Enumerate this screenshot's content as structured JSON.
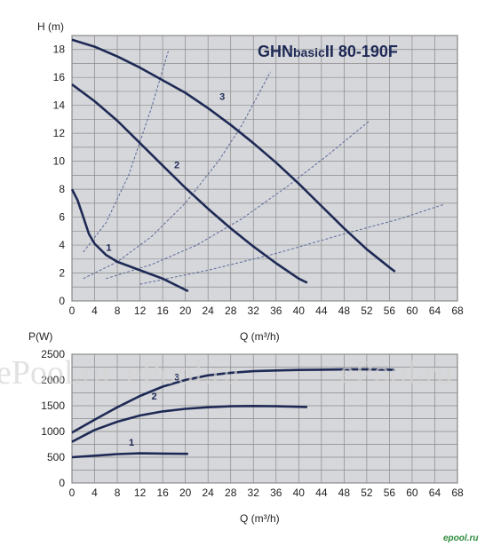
{
  "chart_data": [
    {
      "type": "line",
      "title": "GHNbasicII 80-190F",
      "title_parts": {
        "main": "GHN",
        "mid": "basic",
        "suffix": "II  80-190F"
      },
      "ylabel": "H (m)",
      "xlabel": "Q (m³/h)",
      "xlim": [
        0,
        68
      ],
      "ylim": [
        0,
        19
      ],
      "x_ticks": [
        "0",
        "4",
        "8",
        "12",
        "16",
        "20",
        "24",
        "28",
        "32",
        "36",
        "40",
        "44",
        "48",
        "52",
        "56",
        "60",
        "64",
        "68"
      ],
      "y_ticks": [
        "0",
        "2",
        "4",
        "6",
        "8",
        "10",
        "12",
        "14",
        "16",
        "18"
      ],
      "grid": true,
      "series": [
        {
          "name": "1",
          "x": [
            0,
            1,
            2,
            3,
            4,
            6,
            8,
            12,
            16,
            20.5
          ],
          "y": [
            8,
            7.2,
            6,
            4.8,
            4.1,
            3.3,
            2.8,
            2.2,
            1.6,
            0.7
          ]
        },
        {
          "name": "2",
          "x": [
            0,
            4,
            8,
            12,
            16,
            20,
            24,
            28,
            32,
            36,
            40,
            41.5
          ],
          "y": [
            15.5,
            14.3,
            12.9,
            11.3,
            9.7,
            8.1,
            6.6,
            5.2,
            3.9,
            2.7,
            1.6,
            1.3
          ]
        },
        {
          "name": "3",
          "x": [
            0,
            4,
            8,
            12,
            16,
            20,
            24,
            28,
            32,
            36,
            40,
            44,
            48,
            52,
            56,
            57
          ],
          "y": [
            18.7,
            18.2,
            17.5,
            16.7,
            15.8,
            14.9,
            13.8,
            12.6,
            11.3,
            9.9,
            8.4,
            6.8,
            5.2,
            3.7,
            2.4,
            2.1
          ]
        }
      ],
      "system_curves": [
        {
          "x": [
            2,
            6,
            10,
            14,
            17
          ],
          "y": [
            3.5,
            5.6,
            9.0,
            13.8,
            17.9
          ]
        },
        {
          "x": [
            2,
            8,
            14,
            20,
            26,
            30,
            35
          ],
          "y": [
            1.6,
            2.8,
            4.6,
            7.0,
            10.1,
            12.6,
            16.4
          ]
        },
        {
          "x": [
            6,
            14,
            22,
            30,
            38,
            45,
            52.5
          ],
          "y": [
            1.6,
            2.6,
            4.0,
            5.9,
            8.2,
            10.4,
            12.9
          ]
        },
        {
          "x": [
            12,
            24,
            36,
            48,
            58,
            65.5
          ],
          "y": [
            1.2,
            2.2,
            3.4,
            4.8,
            5.9,
            6.9
          ]
        }
      ]
    },
    {
      "type": "line",
      "title": "",
      "ylabel": "P(W)",
      "xlabel": "Q (m³/h)",
      "xlim": [
        0,
        68
      ],
      "ylim": [
        0,
        2500
      ],
      "x_ticks": [
        "0",
        "4",
        "8",
        "12",
        "16",
        "20",
        "24",
        "28",
        "32",
        "36",
        "40",
        "44",
        "48",
        "52",
        "56",
        "60",
        "64",
        "68"
      ],
      "y_ticks": [
        "0",
        "500",
        "1000",
        "1500",
        "2000",
        "2500"
      ],
      "grid": true,
      "series": [
        {
          "name": "1",
          "x": [
            0,
            4,
            8,
            12,
            16,
            20.5
          ],
          "y": [
            500,
            530,
            560,
            575,
            570,
            565
          ]
        },
        {
          "name": "2",
          "x": [
            0,
            4,
            8,
            12,
            16,
            20,
            24,
            28,
            32,
            36,
            40,
            41.5
          ],
          "y": [
            800,
            1030,
            1190,
            1310,
            1390,
            1440,
            1470,
            1490,
            1495,
            1490,
            1480,
            1475
          ]
        },
        {
          "name": "3",
          "x": [
            0,
            4,
            8,
            12,
            16,
            20,
            24,
            28,
            32,
            36,
            40,
            44,
            48,
            52,
            56,
            57
          ],
          "y": [
            980,
            1230,
            1470,
            1690,
            1870,
            2000,
            2090,
            2140,
            2170,
            2185,
            2195,
            2200,
            2205,
            2205,
            2200,
            2195
          ]
        }
      ]
    }
  ],
  "watermark": {
    "text": "ePool.ru",
    "corner": "epool.ru"
  },
  "colors": {
    "plot_bg": "#d6d7db",
    "grid": "#8a8a8a",
    "curve": "#1e2a55",
    "system_curve": "#5a6a9a"
  }
}
